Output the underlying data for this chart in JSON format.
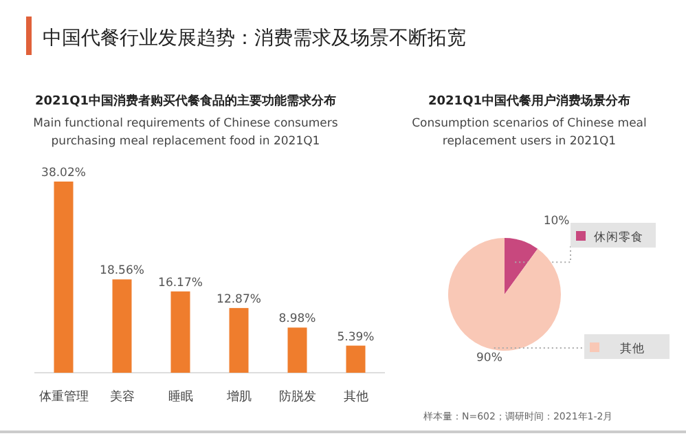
{
  "chart_data": [
    {
      "type": "bar",
      "title": "2021Q1中国消费者购买代餐食品的主要功能需求分布",
      "subtitle": "Main functional requirements of Chinese consumers purchasing meal replacement food in 2021Q1",
      "annotations": [
        "中国代餐行业发展趋势：消费需求及场景不断拓宽"
      ],
      "categories": [
        "体重管理",
        "美容",
        "睡眠",
        "增肌",
        "防脱发",
        "其他"
      ],
      "values": [
        38.02,
        18.56,
        16.17,
        12.87,
        8.98,
        5.39
      ],
      "value_labels": [
        "38.02%",
        "18.56%",
        "16.17%",
        "12.87%",
        "8.98%",
        "5.39%"
      ],
      "color": "#ef7d2d"
    },
    {
      "type": "pie",
      "title": "2021Q1中国代餐用户消费场景分布",
      "subtitle": "Consumption scenarios of Chinese meal replacement users in  2021Q1",
      "annotations": [
        "样本量：N=602；调研时间：2021年1-2月"
      ],
      "categories": [
        "休闲零食",
        "其他"
      ],
      "values": [
        10,
        90
      ],
      "value_labels": [
        "10%",
        "90%"
      ],
      "colors": [
        "#c8487e",
        "#f9c8b6"
      ],
      "legend": "right"
    }
  ]
}
